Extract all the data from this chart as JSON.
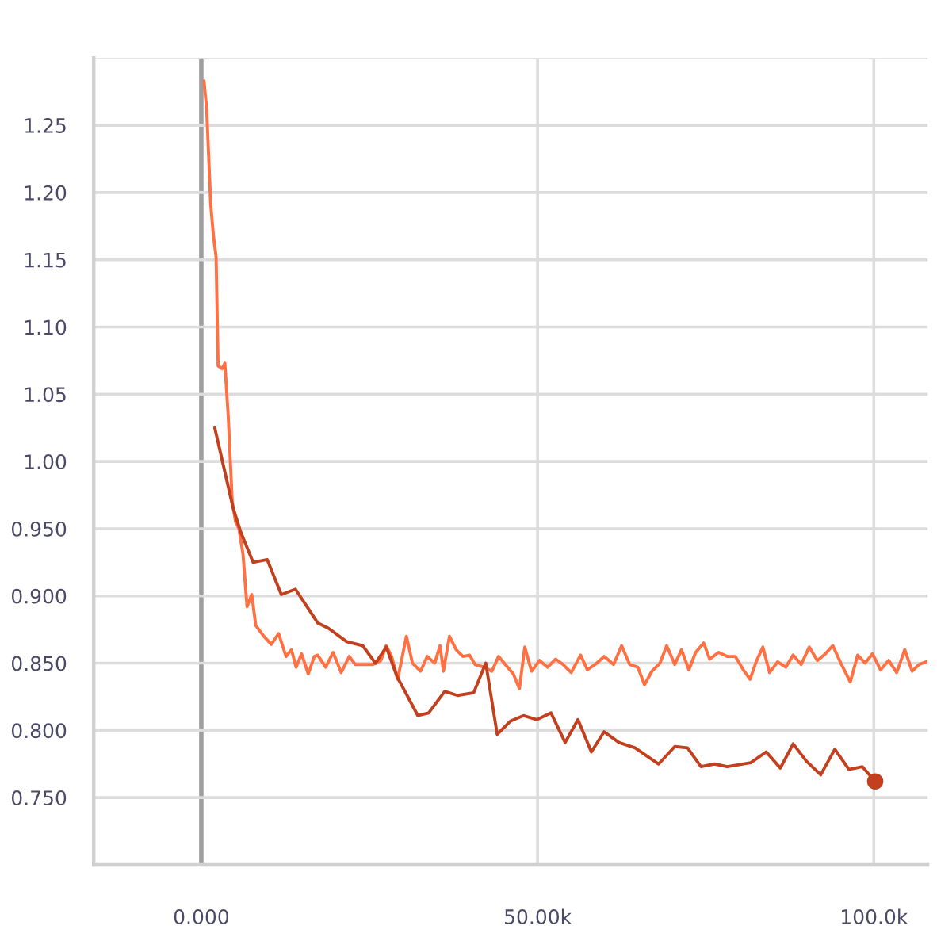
{
  "chart_data": {
    "type": "line",
    "xlim": [
      -16000,
      108000
    ],
    "ylim": [
      0.7,
      1.3
    ],
    "xticks": [
      {
        "value": 0,
        "label": "0.000"
      },
      {
        "value": 50000,
        "label": "50.00k"
      },
      {
        "value": 100000,
        "label": "100.0k"
      }
    ],
    "yticks": [
      {
        "value": 0.75,
        "label": "0.750"
      },
      {
        "value": 0.8,
        "label": "0.800"
      },
      {
        "value": 0.85,
        "label": "0.850"
      },
      {
        "value": 0.9,
        "label": "0.900"
      },
      {
        "value": 0.95,
        "label": "0.950"
      },
      {
        "value": 1.0,
        "label": "1.00"
      },
      {
        "value": 1.05,
        "label": "1.05"
      },
      {
        "value": 1.1,
        "label": "1.10"
      },
      {
        "value": 1.15,
        "label": "1.15"
      },
      {
        "value": 1.2,
        "label": "1.20"
      },
      {
        "value": 1.25,
        "label": "1.25"
      },
      {
        "value": 1.3,
        "label": null
      }
    ],
    "grid": true,
    "series": [
      {
        "color": "#ff7043",
        "x": [
          400,
          800,
          1400,
          1800,
          2200,
          2500,
          3100,
          3500,
          4000,
          4600,
          5100,
          5600,
          6200,
          6800,
          7500,
          8100,
          9300,
          10400,
          11500,
          12600,
          13400,
          14100,
          14900,
          15900,
          16800,
          17300,
          18500,
          19600,
          20800,
          22000,
          22900,
          24400,
          25500,
          26700,
          27500,
          28300,
          29200,
          30500,
          31400,
          32600,
          33600,
          34700,
          35500,
          36000,
          36900,
          37900,
          38900,
          39900,
          40700,
          42100,
          43200,
          44200,
          45200,
          46400,
          47300,
          48100,
          49100,
          50300,
          51500,
          52700,
          53800,
          55000,
          56400,
          57400,
          58800,
          59900,
          61300,
          62500,
          63700,
          64900,
          65900,
          67000,
          68200,
          69200,
          70400,
          71400,
          72500,
          73500,
          74700,
          75600,
          76900,
          78200,
          79400,
          80600,
          81600,
          82500,
          83500,
          84500,
          85700,
          86900,
          88000,
          89200,
          90400,
          91600,
          92800,
          93900,
          95100,
          96500,
          97600,
          98700,
          99800,
          101000,
          102200,
          103400,
          104600,
          105700,
          106700,
          107800
        ],
        "values": [
          1.283,
          1.262,
          1.191,
          1.168,
          1.152,
          1.071,
          1.069,
          1.073,
          1.034,
          0.97,
          0.955,
          0.95,
          0.931,
          0.892,
          0.901,
          0.878,
          0.87,
          0.864,
          0.872,
          0.855,
          0.86,
          0.847,
          0.857,
          0.842,
          0.855,
          0.856,
          0.847,
          0.858,
          0.843,
          0.855,
          0.849,
          0.849,
          0.849,
          0.852,
          0.863,
          0.855,
          0.838,
          0.87,
          0.85,
          0.844,
          0.855,
          0.85,
          0.863,
          0.844,
          0.87,
          0.86,
          0.855,
          0.856,
          0.849,
          0.847,
          0.844,
          0.855,
          0.849,
          0.842,
          0.831,
          0.862,
          0.844,
          0.852,
          0.847,
          0.853,
          0.849,
          0.843,
          0.856,
          0.845,
          0.85,
          0.855,
          0.849,
          0.863,
          0.849,
          0.847,
          0.834,
          0.844,
          0.85,
          0.863,
          0.849,
          0.86,
          0.845,
          0.858,
          0.865,
          0.853,
          0.858,
          0.855,
          0.855,
          0.845,
          0.838,
          0.851,
          0.862,
          0.843,
          0.851,
          0.847,
          0.856,
          0.849,
          0.862,
          0.852,
          0.857,
          0.863,
          0.85,
          0.836,
          0.856,
          0.85,
          0.857,
          0.845,
          0.852,
          0.843,
          0.86,
          0.844,
          0.849,
          0.851
        ]
      },
      {
        "color": "#c2401e",
        "x": [
          2000,
          4700,
          5900,
          7700,
          9800,
          11900,
          14000,
          17300,
          18900,
          21600,
          24000,
          25900,
          27500,
          29100,
          32200,
          33800,
          36200,
          38100,
          40500,
          42300,
          44000,
          46000,
          47900,
          49900,
          52000,
          54100,
          56000,
          58000,
          59900,
          62100,
          64500,
          68000,
          70400,
          72300,
          74300,
          76300,
          78200,
          81700,
          84000,
          86100,
          88000,
          90000,
          92100,
          94200,
          96300,
          98300,
          100200
        ],
        "values": [
          1.025,
          0.966,
          0.947,
          0.925,
          0.927,
          0.901,
          0.905,
          0.88,
          0.876,
          0.866,
          0.863,
          0.85,
          0.862,
          0.84,
          0.811,
          0.813,
          0.829,
          0.826,
          0.828,
          0.85,
          0.797,
          0.807,
          0.811,
          0.808,
          0.813,
          0.791,
          0.808,
          0.784,
          0.799,
          0.791,
          0.787,
          0.775,
          0.788,
          0.787,
          0.773,
          0.775,
          0.773,
          0.776,
          0.784,
          0.772,
          0.79,
          0.777,
          0.767,
          0.786,
          0.771,
          0.773,
          0.762
        ]
      },
      {
        "type": "scatter",
        "marker": "circle",
        "color": "#c2401e",
        "x": [
          100200
        ],
        "values": [
          0.762
        ]
      }
    ]
  }
}
